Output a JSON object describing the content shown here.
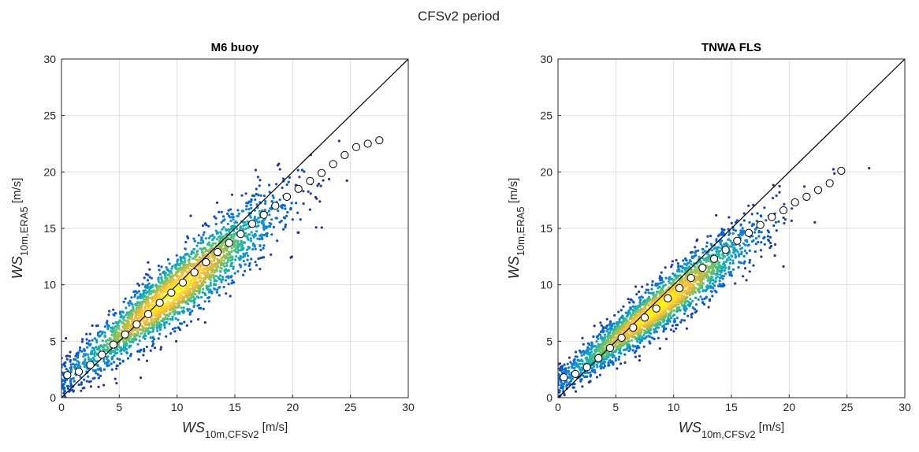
{
  "figure": {
    "suptitle": "CFSv2 period"
  },
  "chart_data": [
    {
      "type": "scatter",
      "title": "M6 buoy",
      "xlabel": {
        "main": "WS",
        "sub": "10m,CFSv2",
        "unit": " [m/s]"
      },
      "ylabel": {
        "main": "WS",
        "sub": "10m,ERA5",
        "unit": " [m/s]"
      },
      "xlim": [
        0,
        30
      ],
      "ylim": [
        0,
        30
      ],
      "xticks": [
        0,
        5,
        10,
        15,
        20,
        25,
        30
      ],
      "yticks": [
        0,
        5,
        10,
        15,
        20,
        25,
        30
      ],
      "grid": true,
      "reference_line": "1:1",
      "density_colormap": "parula",
      "scatter_cloud": {
        "slope": 0.81,
        "intercept": 1.5,
        "spread": 1.35,
        "center": 9.5,
        "xsd": 4.6,
        "xmax": 29.5
      },
      "bin_means": {
        "x": [
          0.5,
          1.5,
          2.5,
          3.5,
          4.5,
          5.5,
          6.5,
          7.5,
          8.5,
          9.5,
          10.5,
          11.5,
          12.5,
          13.5,
          14.5,
          15.5,
          16.5,
          17.5,
          18.5,
          19.5,
          20.5,
          21.5,
          22.5,
          23.5,
          24.5,
          25.5,
          26.5,
          27.5
        ],
        "y": [
          2.0,
          2.3,
          2.9,
          3.8,
          4.7,
          5.6,
          6.5,
          7.4,
          8.4,
          9.3,
          10.2,
          11.1,
          12.0,
          12.9,
          13.7,
          14.5,
          15.4,
          16.2,
          17.0,
          17.8,
          18.5,
          19.2,
          19.9,
          20.7,
          21.5,
          22.2,
          22.5,
          22.8
        ]
      }
    },
    {
      "type": "scatter",
      "title": "TNWA FLS",
      "xlabel": {
        "main": "WS",
        "sub": "10m,CFSv2",
        "unit": " [m/s]"
      },
      "ylabel": {
        "main": "WS",
        "sub": "10m,ERA5",
        "unit": " [m/s]"
      },
      "xlim": [
        0,
        30
      ],
      "ylim": [
        0,
        30
      ],
      "xticks": [
        0,
        5,
        10,
        15,
        20,
        25,
        30
      ],
      "yticks": [
        0,
        5,
        10,
        15,
        20,
        25,
        30
      ],
      "grid": true,
      "reference_line": "1:1",
      "density_colormap": "parula",
      "scatter_cloud": {
        "slope": 0.77,
        "intercept": 1.3,
        "spread": 1.05,
        "center": 8.5,
        "xsd": 4.3,
        "xmax": 28.5
      },
      "bin_means": {
        "x": [
          0.5,
          1.5,
          2.5,
          3.5,
          4.5,
          5.5,
          6.5,
          7.5,
          8.5,
          9.5,
          10.5,
          11.5,
          12.5,
          13.5,
          14.5,
          15.5,
          16.5,
          17.5,
          18.5,
          19.5,
          20.5,
          21.5,
          22.5,
          23.5,
          24.5
        ],
        "y": [
          1.8,
          2.1,
          2.7,
          3.5,
          4.4,
          5.3,
          6.2,
          7.1,
          7.9,
          8.8,
          9.7,
          10.6,
          11.5,
          12.3,
          13.1,
          13.9,
          14.6,
          15.3,
          16.0,
          16.6,
          17.3,
          17.8,
          18.4,
          19.0,
          20.1
        ]
      }
    }
  ]
}
